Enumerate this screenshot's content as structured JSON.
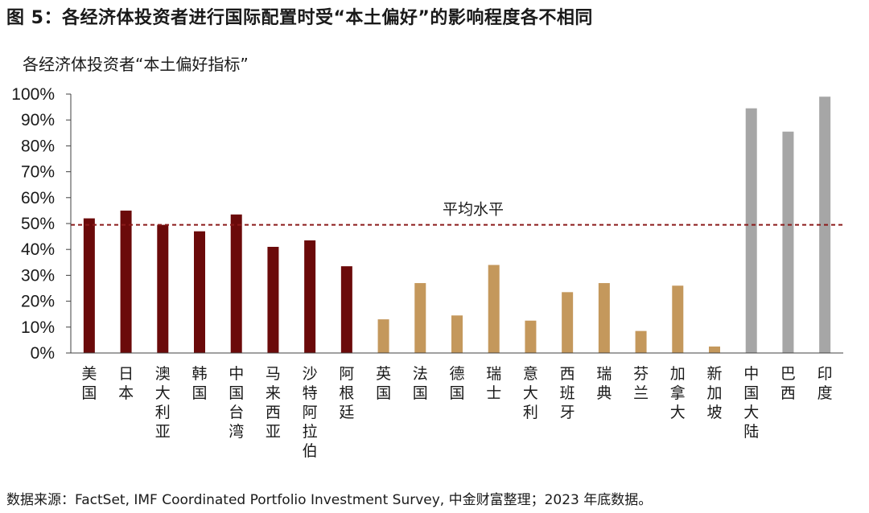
{
  "header": {
    "title": "图 5：各经济体投资者进行国际配置时受“本土偏好”的影响程度各不相同",
    "subtitle": "各经济体投资者“本土偏好指标”"
  },
  "footer": {
    "source": "数据来源：FactSet, IMF Coordinated Portfolio Investment Survey, 中金财富整理；2023 年底数据。"
  },
  "colors": {
    "group1": "#6b0a0a",
    "group2": "#c4985c",
    "group3": "#a6a6a6",
    "reference": "#8b1a1a",
    "axis": "#404040"
  },
  "chart_data": {
    "type": "bar",
    "title": "各经济体投资者“本土偏好指标”",
    "ylim": [
      0,
      100
    ],
    "y_ticks": [
      "0%",
      "10%",
      "20%",
      "30%",
      "40%",
      "50%",
      "60%",
      "70%",
      "80%",
      "90%",
      "100%"
    ],
    "categories": [
      "美国",
      "日本",
      "澳大利亚",
      "韩国",
      "中国台湾",
      "马来西亚",
      "沙特阿拉伯",
      "阿根廷",
      "英国",
      "法国",
      "德国",
      "瑞士",
      "意大利",
      "西班牙",
      "瑞典",
      "芬兰",
      "加拿大",
      "新加坡",
      "中国大陆",
      "巴西",
      "印度"
    ],
    "values": [
      52,
      55,
      49.5,
      47,
      53.5,
      41,
      43.5,
      33.5,
      13,
      27,
      14.5,
      34,
      12.5,
      23.5,
      27,
      8.5,
      26,
      2.5,
      94.5,
      85.5,
      99
    ],
    "groups": [
      1,
      1,
      1,
      1,
      1,
      1,
      1,
      1,
      2,
      2,
      2,
      2,
      2,
      2,
      2,
      2,
      2,
      2,
      3,
      3,
      3
    ],
    "reference_line": {
      "label": "平均水平",
      "value": 49.5
    }
  }
}
